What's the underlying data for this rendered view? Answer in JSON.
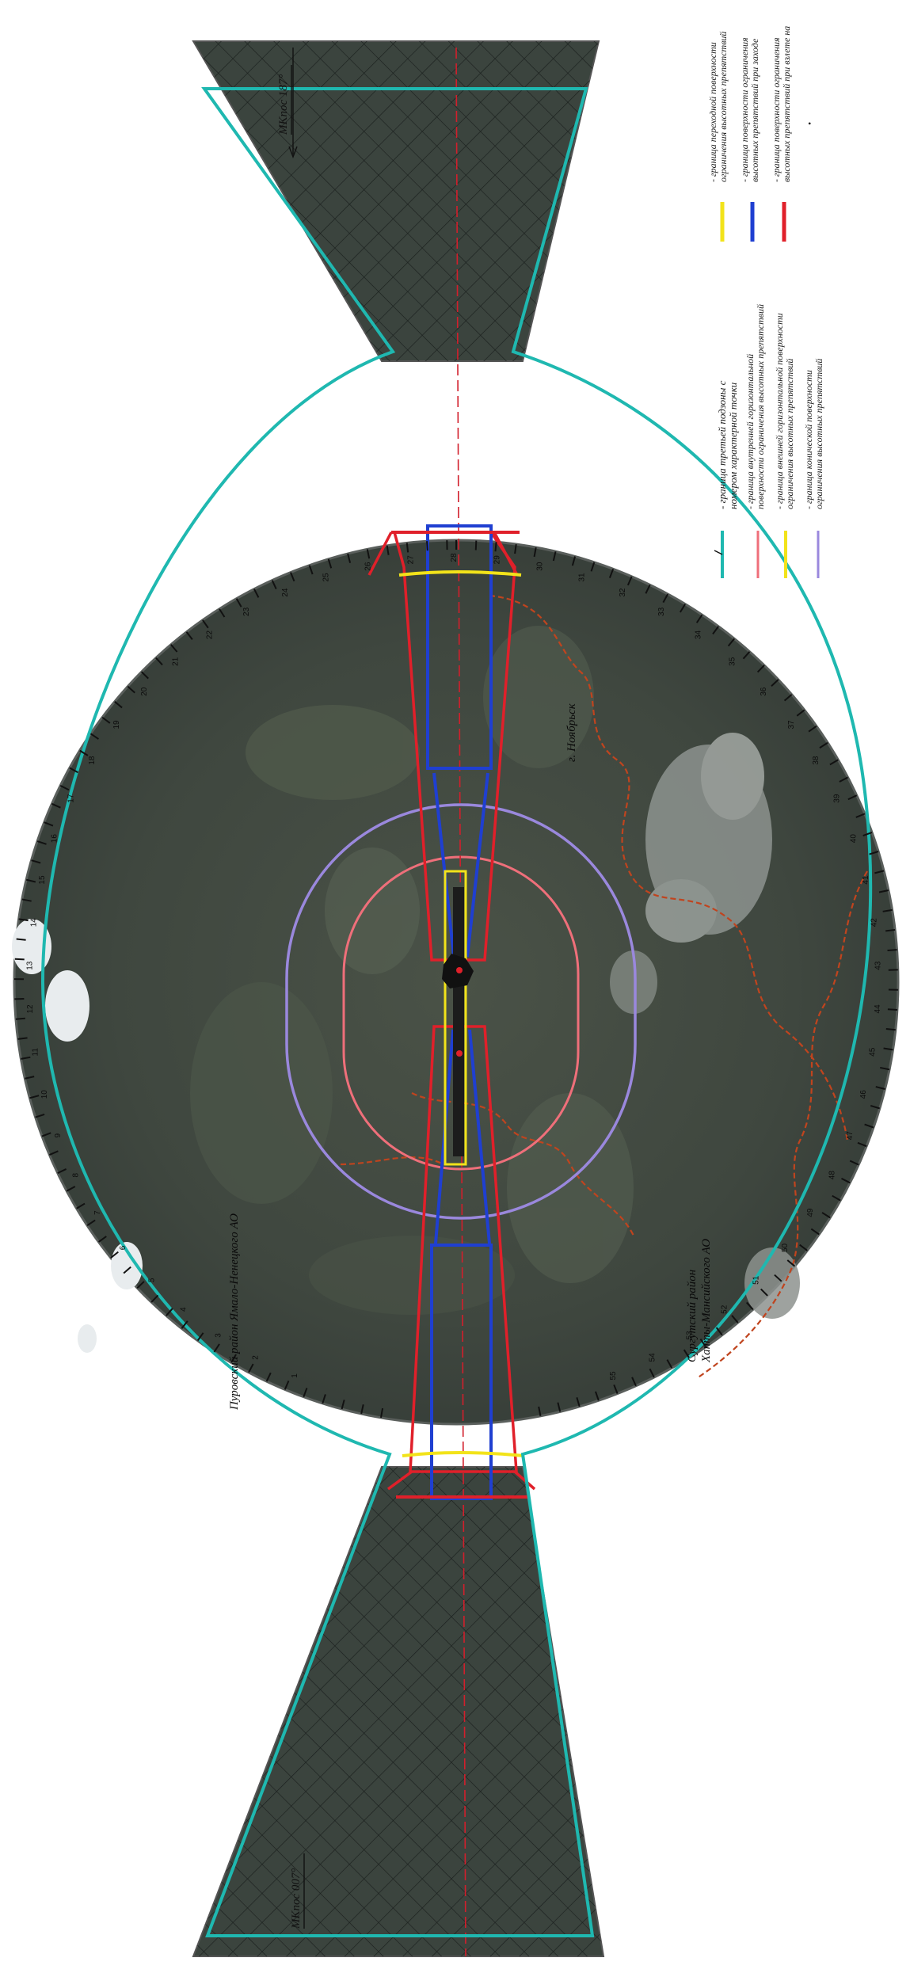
{
  "map": {
    "headings": {
      "top": "МКпос 187°",
      "bottom": "МКпос 007°"
    },
    "region_labels": {
      "purovsky": "Пуровский район Ямало-Ненецкого АО",
      "surgutsky_line1": "Сургутский район",
      "surgutsky_line2": "Ханты-Мансийского АО",
      "city": "г. Ноябрьск"
    },
    "colors": {
      "zone_boundary": "#1fb8b0",
      "inner_horizontal": "#ef6f7a",
      "conical": "#9a88dd",
      "outer_horizontal": "#f2e31a",
      "transitional": "#f2e31a",
      "approach": "#1f3fd1",
      "takeoff": "#e0202a",
      "admin_border": "#c0441e",
      "background": "#3d4640"
    },
    "legend_left": [
      {
        "symbol": "teal-line-with-point",
        "line1": "- граница третьей подзоны с",
        "line2": "номером характерной точки"
      },
      {
        "symbol": "pink-line",
        "line1": "- граница внутренней горизонтальной",
        "line2": "поверхности ограничения высотных препятствий"
      },
      {
        "symbol": "yellow-line",
        "line1": "- граница внешней горизонтальной поверхности",
        "line2": "ограничения высотных препятствий"
      },
      {
        "symbol": "purple-line",
        "line1": "- граница конической поверхности",
        "line2": "ограничения высотных препятствий"
      }
    ],
    "legend_right": [
      {
        "symbol": "yellow-line",
        "line1": "- граница переходной поверхности",
        "line2": "ограничения высотных препятствий"
      },
      {
        "symbol": "blue-line",
        "line1": "- граница поверхности ограничения",
        "line2": "высотных препятствий при заходе"
      },
      {
        "symbol": "red-line",
        "line1": "- граница поверхности ограничения",
        "line2": "высотных препятствий при взлете на"
      }
    ],
    "boundary_point_numbers": [
      "1",
      "2",
      "3",
      "4",
      "5",
      "6",
      "7",
      "8",
      "9",
      "10",
      "11",
      "12",
      "13",
      "14",
      "15",
      "16",
      "17",
      "18",
      "19",
      "20",
      "21",
      "22",
      "23",
      "24",
      "25",
      "26",
      "27",
      "28",
      "29",
      "30",
      "31",
      "32",
      "33",
      "34",
      "35",
      "36",
      "37",
      "38",
      "39",
      "40",
      "41",
      "42",
      "43",
      "44",
      "45",
      "46",
      "47",
      "48",
      "49",
      "50",
      "51",
      "52",
      "53",
      "54",
      "55"
    ]
  }
}
